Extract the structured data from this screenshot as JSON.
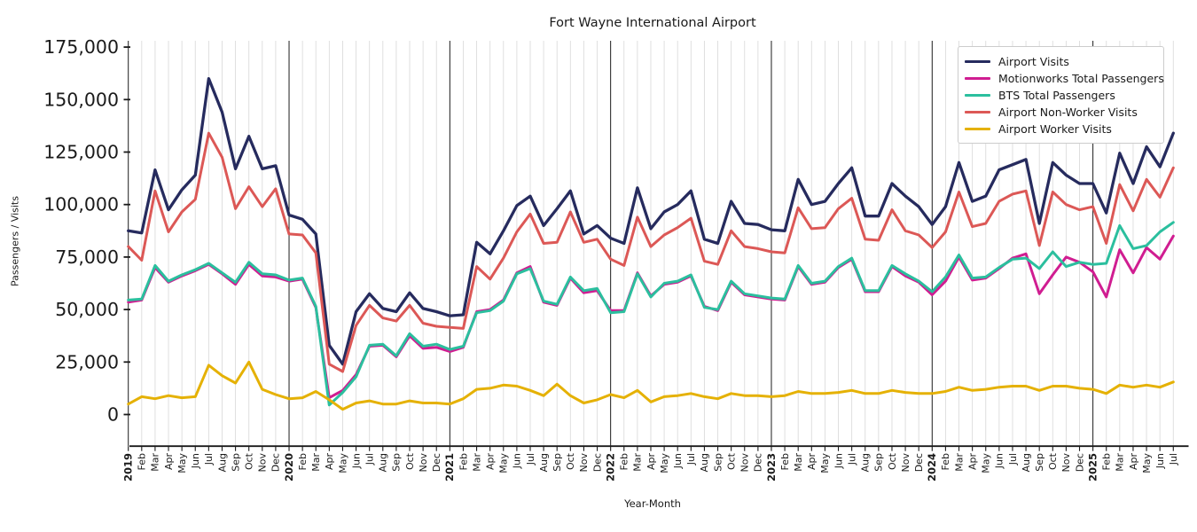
{
  "title": "Fort Wayne International Airport",
  "axes": {
    "x_label": "Year-Month",
    "y_label": "Passengers / Visits",
    "y_tick_labels": [
      "0",
      "25,000",
      "50,000",
      "75,000",
      "100,000",
      "125,000",
      "150,000",
      "175,000"
    ],
    "y_tick_values": [
      0,
      25000,
      50000,
      75000,
      100000,
      125000,
      150000,
      175000
    ]
  },
  "legend": {
    "position": "top-right"
  },
  "chart_data": {
    "type": "line",
    "title": "Fort Wayne International Airport",
    "xlabel": "Year-Month",
    "ylabel": "Passengers / Visits",
    "ylim": [
      -15000,
      178500
    ],
    "grid": {
      "vertical_monthly": true,
      "january_lines_emphasized": true
    },
    "legend_position": "top-right",
    "x": [
      "2019-01",
      "2019-02",
      "2019-03",
      "2019-04",
      "2019-05",
      "2019-06",
      "2019-07",
      "2019-08",
      "2019-09",
      "2019-10",
      "2019-11",
      "2019-12",
      "2020-01",
      "2020-02",
      "2020-03",
      "2020-04",
      "2020-05",
      "2020-06",
      "2020-07",
      "2020-08",
      "2020-09",
      "2020-10",
      "2020-11",
      "2020-12",
      "2021-01",
      "2021-02",
      "2021-03",
      "2021-04",
      "2021-05",
      "2021-06",
      "2021-07",
      "2021-08",
      "2021-09",
      "2021-10",
      "2021-11",
      "2021-12",
      "2022-01",
      "2022-02",
      "2022-03",
      "2022-04",
      "2022-05",
      "2022-06",
      "2022-07",
      "2022-08",
      "2022-09",
      "2022-10",
      "2022-11",
      "2022-12",
      "2023-01",
      "2023-02",
      "2023-03",
      "2023-04",
      "2023-05",
      "2023-06",
      "2023-07",
      "2023-08",
      "2023-09",
      "2023-10",
      "2023-11",
      "2023-12",
      "2024-01",
      "2024-02",
      "2024-03",
      "2024-04",
      "2024-05",
      "2024-06",
      "2024-07",
      "2024-08",
      "2024-09",
      "2024-10",
      "2024-11",
      "2024-12",
      "2025-01",
      "2025-02",
      "2025-03",
      "2025-04",
      "2025-05",
      "2025-06",
      "2025-07"
    ],
    "x_tick_labels": [
      "2019",
      "Feb",
      "Mar",
      "Apr",
      "May",
      "Jun",
      "Jul",
      "Aug",
      "Sep",
      "Oct",
      "Nov",
      "Dec",
      "2020",
      "Feb",
      "Mar",
      "Apr",
      "May",
      "Jun",
      "Jul",
      "Aug",
      "Sep",
      "Oct",
      "Nov",
      "Dec",
      "2021",
      "Feb",
      "Mar",
      "Apr",
      "May",
      "Jun",
      "Jul",
      "Aug",
      "Sep",
      "Oct",
      "Nov",
      "Dec",
      "2022",
      "Feb",
      "Mar",
      "Apr",
      "May",
      "Jun",
      "Jul",
      "Aug",
      "Sep",
      "Oct",
      "Nov",
      "Dec",
      "2023",
      "Feb",
      "Mar",
      "Apr",
      "May",
      "Jun",
      "Jul",
      "Aug",
      "Sep",
      "Oct",
      "Nov",
      "Dec",
      "2024",
      "Feb",
      "Mar",
      "Apr",
      "May",
      "Jun",
      "Jul",
      "Aug",
      "Sep",
      "Oct",
      "Nov",
      "Dec",
      "2025",
      "Feb",
      "Mar",
      "Apr",
      "May",
      "Jun",
      "Jul"
    ],
    "series": [
      {
        "name": "Airport Visits",
        "color": "#262b5e",
        "values": [
          87500,
          86500,
          116500,
          97500,
          107000,
          114000,
          160000,
          144000,
          117000,
          132500,
          117000,
          118500,
          95000,
          93000,
          86000,
          33000,
          24000,
          49000,
          57500,
          50500,
          49000,
          58000,
          50500,
          49000,
          47000,
          47500,
          82000,
          76500,
          87500,
          99500,
          104000,
          90000,
          98000,
          106500,
          86000,
          90000,
          84000,
          81500,
          108000,
          88500,
          96500,
          100000,
          106500,
          83500,
          81500,
          101500,
          91000,
          90500,
          88000,
          87500,
          112000,
          100000,
          101500,
          110000,
          117500,
          94500,
          94500,
          110000,
          104000,
          99000,
          90500,
          99000,
          120000,
          101500,
          104000,
          116500,
          119000,
          121500,
          91000,
          120000,
          114000,
          110000,
          110000,
          96000,
          124500,
          110000,
          127500,
          118000,
          134000
        ]
      },
      {
        "name": "Motionworks Total Passengers",
        "color": "#d01d91",
        "values": [
          53500,
          54500,
          70000,
          63000,
          66000,
          68500,
          71500,
          67000,
          62000,
          71500,
          66000,
          65500,
          63500,
          64500,
          51000,
          8000,
          11500,
          19000,
          32500,
          33000,
          27500,
          37500,
          31500,
          32000,
          30000,
          32000,
          49000,
          50000,
          54500,
          67500,
          70500,
          53500,
          52000,
          65000,
          58000,
          59000,
          49500,
          49500,
          67500,
          56500,
          62000,
          63000,
          66000,
          51500,
          49500,
          63000,
          57000,
          56000,
          55000,
          54500,
          70500,
          62000,
          63000,
          70000,
          74000,
          58500,
          58500,
          70500,
          66000,
          63000,
          57000,
          63500,
          75000,
          64000,
          65000,
          69500,
          74500,
          76500,
          57500,
          66500,
          75000,
          72500,
          68000,
          56000,
          78500,
          67500,
          79500,
          74000,
          85000
        ]
      },
      {
        "name": "BTS Total Passengers",
        "color": "#2bbf9e",
        "values": [
          54500,
          55000,
          71000,
          63500,
          66500,
          69000,
          72000,
          67500,
          63000,
          72500,
          67000,
          66500,
          64000,
          65000,
          51500,
          4500,
          10500,
          18000,
          33000,
          33500,
          28000,
          38500,
          32500,
          33500,
          31000,
          32500,
          48500,
          49500,
          54000,
          67000,
          69500,
          54000,
          52500,
          65500,
          59000,
          60000,
          48500,
          49000,
          67000,
          56000,
          62500,
          63500,
          66500,
          51000,
          50000,
          63500,
          57500,
          56500,
          55500,
          55000,
          71000,
          62500,
          63500,
          70500,
          74500,
          59000,
          59000,
          71000,
          67000,
          63500,
          58500,
          65500,
          76000,
          65000,
          65500,
          70000,
          74000,
          74500,
          69500,
          77500,
          70500,
          72500,
          71500,
          72000,
          90000,
          79000,
          80500,
          87000,
          91500
        ]
      },
      {
        "name": "Airport Non-Worker Visits",
        "color": "#dc5856",
        "values": [
          80000,
          73500,
          106500,
          87000,
          96500,
          102500,
          134000,
          122500,
          98000,
          108500,
          99000,
          107500,
          86000,
          85500,
          77000,
          24000,
          20500,
          42500,
          52000,
          46000,
          44500,
          52000,
          43500,
          42000,
          41500,
          41000,
          70500,
          64500,
          74500,
          87000,
          95500,
          81500,
          82000,
          96500,
          82000,
          83500,
          74000,
          71000,
          94000,
          80000,
          85500,
          89000,
          93500,
          73000,
          71500,
          87500,
          80000,
          79000,
          77500,
          77000,
          98500,
          88500,
          89000,
          98000,
          103000,
          83500,
          83000,
          97500,
          87500,
          85500,
          79500,
          87000,
          106000,
          89500,
          91000,
          101500,
          105000,
          106500,
          80500,
          106000,
          100000,
          97500,
          99000,
          81500,
          109500,
          97000,
          112000,
          103500,
          117500
        ]
      },
      {
        "name": "Airport Worker Visits",
        "color": "#e5b104",
        "values": [
          5000,
          8500,
          7500,
          9000,
          8000,
          8500,
          23500,
          18500,
          15000,
          25000,
          12000,
          9500,
          7500,
          8000,
          11000,
          7000,
          2500,
          5500,
          6500,
          5000,
          5000,
          6500,
          5500,
          5500,
          5000,
          7500,
          12000,
          12500,
          14000,
          13500,
          11500,
          9000,
          14500,
          9000,
          5500,
          7000,
          9500,
          8000,
          11500,
          6000,
          8500,
          9000,
          10000,
          8500,
          7500,
          10000,
          9000,
          9000,
          8500,
          9000,
          11000,
          10000,
          10000,
          10500,
          11500,
          10000,
          10000,
          11500,
          10500,
          10000,
          10000,
          11000,
          13000,
          11500,
          12000,
          13000,
          13500,
          13500,
          11500,
          13500,
          13500,
          12500,
          12000,
          10000,
          14000,
          13000,
          14000,
          13000,
          15500
        ]
      }
    ]
  }
}
